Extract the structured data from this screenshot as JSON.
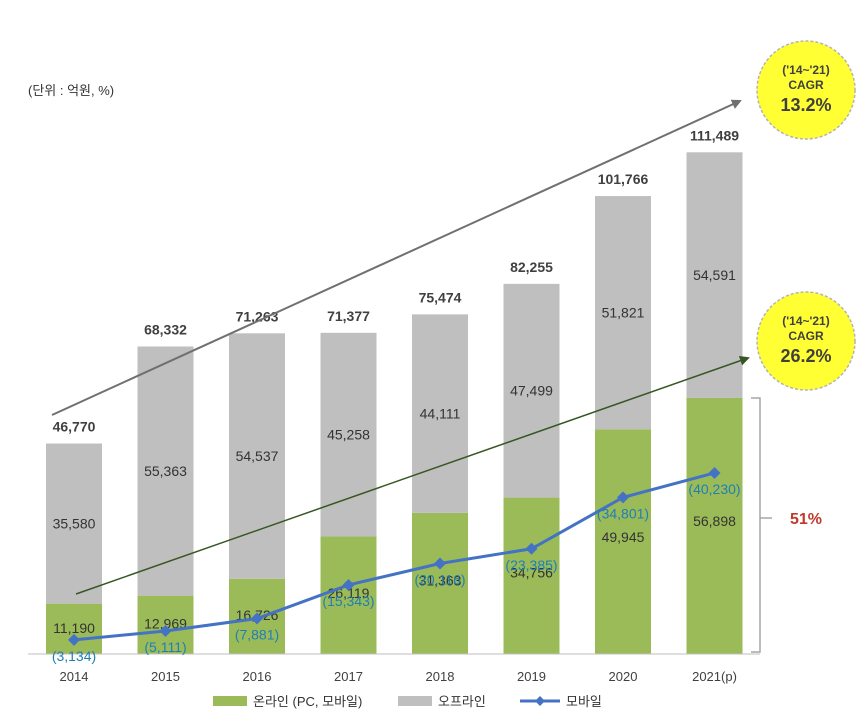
{
  "unit_note": "(단위 : 억원, %)",
  "chart_data": {
    "type": "bar",
    "stacked": true,
    "categories": [
      "2014",
      "2015",
      "2016",
      "2017",
      "2018",
      "2019",
      "2020",
      "2021(p)"
    ],
    "totals": [
      "46,770",
      "68,332",
      "71,263",
      "71,377",
      "75,474",
      "82,255",
      "101,766",
      "111,489"
    ],
    "series": [
      {
        "name": "온라인 (PC, 모바일)",
        "color": "#9bbb59",
        "values": [
          11190,
          12969,
          16726,
          26119,
          31363,
          34756,
          49945,
          56898
        ],
        "labels": [
          "11,190",
          "12,969",
          "16,726",
          "26,119",
          "31,363",
          "34,756",
          "49,945",
          "56,898"
        ]
      },
      {
        "name": "오프라인",
        "color": "#bfbfbf",
        "values": [
          35580,
          55363,
          54537,
          45258,
          44111,
          47499,
          51821,
          54591
        ],
        "labels": [
          "35,580",
          "55,363",
          "54,537",
          "45,258",
          "44,111",
          "47,499",
          "51,821",
          "54,591"
        ]
      }
    ],
    "line": {
      "name": "모바일",
      "color": "#4472c4",
      "values": [
        3134,
        5111,
        7881,
        15343,
        20116,
        23385,
        34801,
        40230
      ],
      "labels": [
        "(3,134)",
        "(5,111)",
        "(7,881)",
        "(15,343)",
        "(20,116)",
        "(23,385)",
        "(34,801)",
        "(40,230)"
      ]
    },
    "ylim": [
      0,
      130000
    ],
    "grid": false,
    "legend": "bottom",
    "cagr_badges": [
      {
        "period": "('14~'21)",
        "label": "CAGR",
        "value": "13.2%"
      },
      {
        "period": "('14~'21)",
        "label": "CAGR",
        "value": "26.2%"
      }
    ],
    "share_annotation": "51%"
  }
}
